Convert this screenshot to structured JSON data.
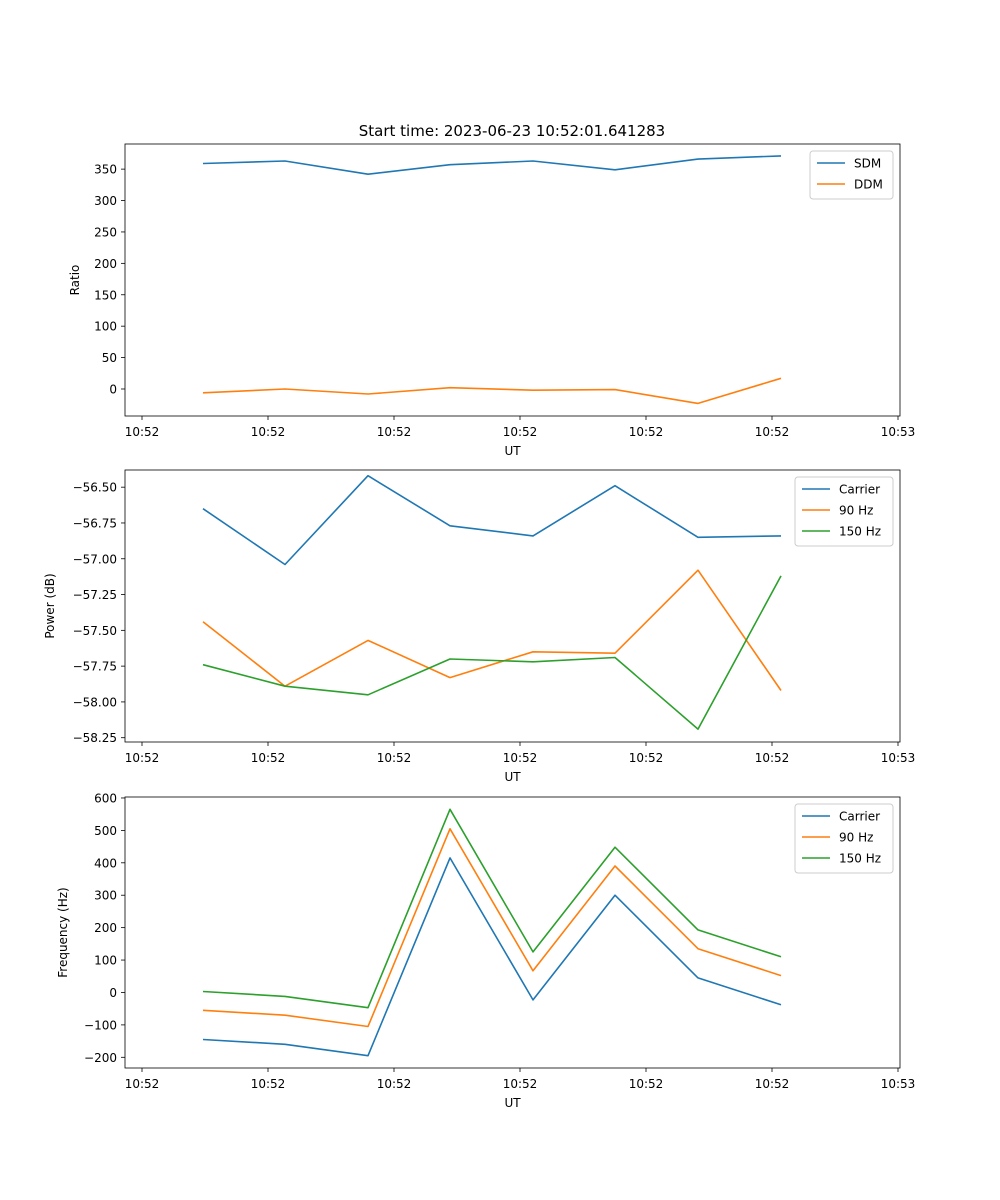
{
  "chart_data": [
    {
      "type": "line",
      "title": "Start time: 2023-06-23 10:52:01.641283",
      "xlabel": "UT",
      "ylabel": "Ratio",
      "x_tick_labels": [
        "10:52",
        "10:52",
        "10:52",
        "10:52",
        "10:52",
        "10:52",
        "10:53"
      ],
      "y_ticks": [
        0,
        50,
        100,
        150,
        200,
        250,
        300,
        350
      ],
      "y_tick_labels": [
        "0",
        "50",
        "100",
        "150",
        "200",
        "250",
        "300",
        "350"
      ],
      "ylim": [
        -43,
        390
      ],
      "legend_position": "top-right",
      "series": [
        {
          "name": "SDM",
          "color": "#1f77b4",
          "values": [
            359,
            363,
            342,
            357,
            363,
            349,
            366,
            371
          ]
        },
        {
          "name": "DDM",
          "color": "#ff7f0e",
          "values": [
            -6,
            0,
            -8,
            2,
            -2,
            -1,
            -23,
            17
          ]
        }
      ]
    },
    {
      "type": "line",
      "title": "",
      "xlabel": "UT",
      "ylabel": "Power (dB)",
      "x_tick_labels": [
        "10:52",
        "10:52",
        "10:52",
        "10:52",
        "10:52",
        "10:52",
        "10:53"
      ],
      "y_ticks": [
        -58.25,
        -58.0,
        -57.75,
        -57.5,
        -57.25,
        -57.0,
        -56.75,
        -56.5
      ],
      "y_tick_labels": [
        "−58.25",
        "−58.00",
        "−57.75",
        "−57.50",
        "−57.25",
        "−57.00",
        "−56.75",
        "−56.50"
      ],
      "ylim": [
        -58.28,
        -56.38
      ],
      "legend_position": "top-right",
      "series": [
        {
          "name": "Carrier",
          "color": "#1f77b4",
          "values": [
            -56.65,
            -57.04,
            -56.42,
            -56.77,
            -56.84,
            -56.49,
            -56.85,
            -56.84
          ]
        },
        {
          "name": "90 Hz",
          "color": "#ff7f0e",
          "values": [
            -57.44,
            -57.89,
            -57.57,
            -57.83,
            -57.65,
            -57.66,
            -57.08,
            -57.92
          ]
        },
        {
          "name": "150 Hz",
          "color": "#2ca02c",
          "values": [
            -57.74,
            -57.89,
            -57.95,
            -57.7,
            -57.72,
            -57.69,
            -58.19,
            -57.12
          ]
        }
      ]
    },
    {
      "type": "line",
      "title": "",
      "xlabel": "UT",
      "ylabel": "Frequency (Hz)",
      "x_tick_labels": [
        "10:52",
        "10:52",
        "10:52",
        "10:52",
        "10:52",
        "10:52",
        "10:53"
      ],
      "y_ticks": [
        -200,
        -100,
        0,
        100,
        200,
        300,
        400,
        500,
        600
      ],
      "y_tick_labels": [
        "−200",
        "−100",
        "0",
        "100",
        "200",
        "300",
        "400",
        "500",
        "600"
      ],
      "ylim": [
        -233,
        603
      ],
      "legend_position": "top-right",
      "series": [
        {
          "name": "Carrier",
          "color": "#1f77b4",
          "values": [
            -145,
            -160,
            -195,
            415,
            -23,
            300,
            45,
            -38
          ]
        },
        {
          "name": "90 Hz",
          "color": "#ff7f0e",
          "values": [
            -55,
            -70,
            -105,
            505,
            67,
            390,
            135,
            52
          ]
        },
        {
          "name": "150 Hz",
          "color": "#2ca02c",
          "values": [
            3,
            -12,
            -47,
            565,
            125,
            448,
            193,
            110
          ]
        }
      ]
    }
  ]
}
